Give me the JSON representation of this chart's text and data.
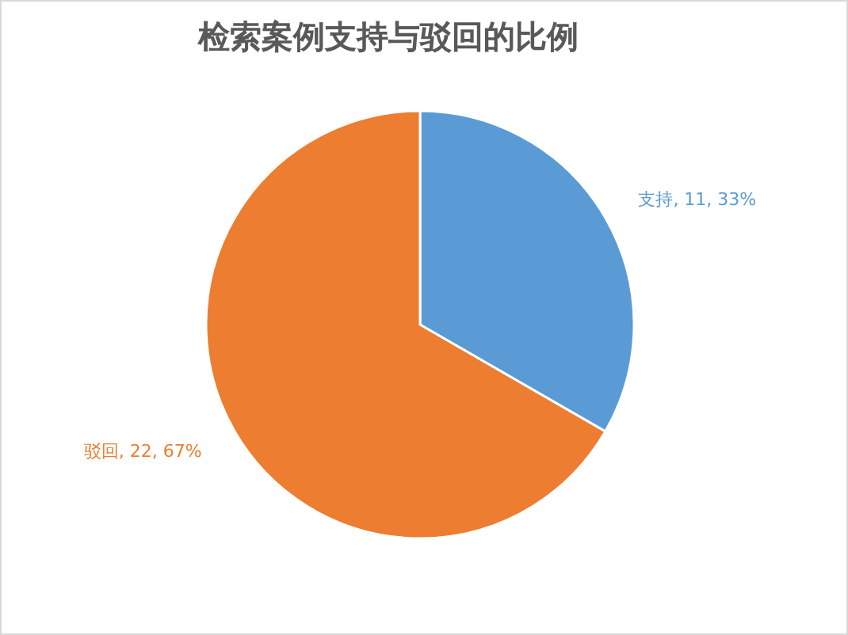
{
  "chart_data": {
    "type": "pie",
    "title": "检索案例支持与驳回的比例",
    "categories": [
      "支持",
      "驳回"
    ],
    "values": [
      11,
      22
    ],
    "colors": [
      "#5b9bd5",
      "#ed7d31"
    ],
    "value_labels": [
      "11, 33%",
      "22, 67%"
    ]
  }
}
